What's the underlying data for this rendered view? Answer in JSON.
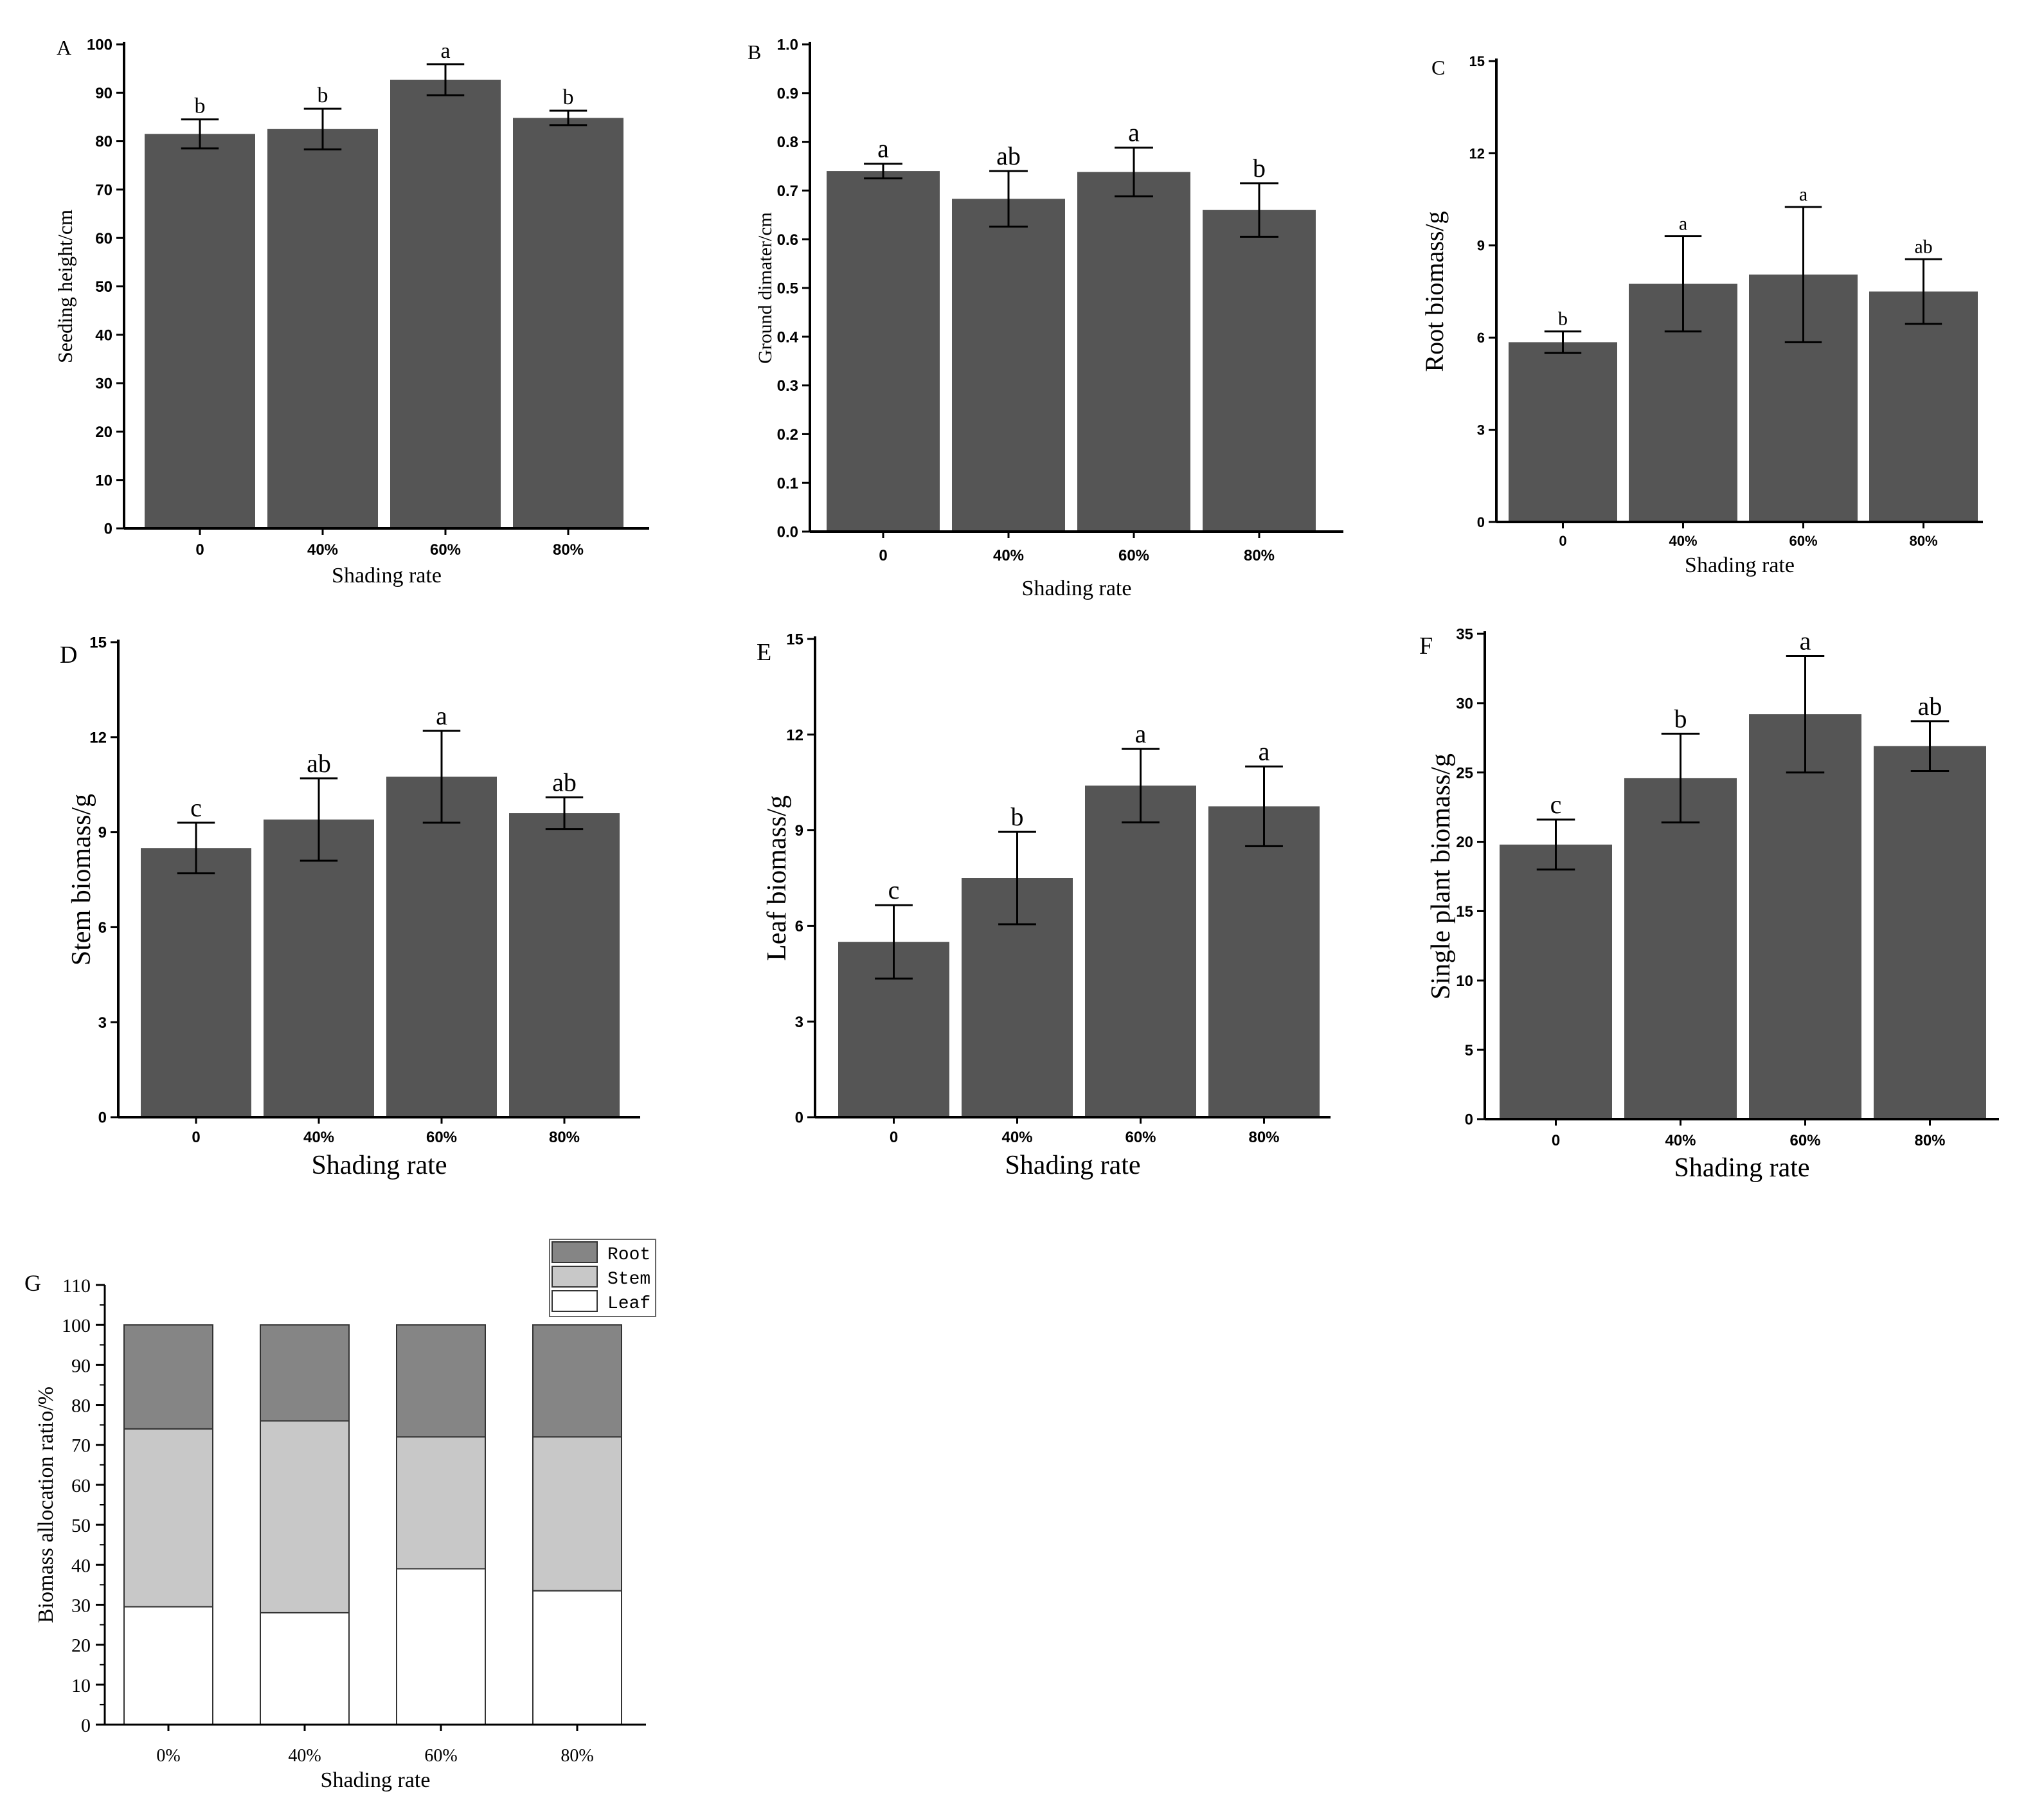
{
  "chart_data": [
    {
      "id": "A",
      "type": "bar",
      "panel_label": "A",
      "categories": [
        "0",
        "40%",
        "60%",
        "80%"
      ],
      "values": [
        81.5,
        82.5,
        92.7,
        84.8
      ],
      "errors": [
        3.0,
        4.2,
        3.2,
        1.5
      ],
      "letters": [
        "b",
        "b",
        "a",
        "b"
      ],
      "xlabel": "Shading rate",
      "ylabel": "Seeding height/cm",
      "ylim": [
        0,
        100
      ],
      "yticks": [
        "0",
        "10",
        "20",
        "30",
        "40",
        "50",
        "60",
        "70",
        "80",
        "90",
        "100"
      ]
    },
    {
      "id": "B",
      "type": "bar",
      "panel_label": "B",
      "categories": [
        "0",
        "40%",
        "60%",
        "80%"
      ],
      "values": [
        0.74,
        0.683,
        0.738,
        0.66
      ],
      "errors": [
        0.015,
        0.057,
        0.05,
        0.055
      ],
      "letters": [
        "a",
        "ab",
        "a",
        "b"
      ],
      "xlabel": "Shading rate",
      "ylabel": "Ground dimater/cm",
      "ylim": [
        0,
        1.0
      ],
      "yticks": [
        "0.0",
        "0.1",
        "0.2",
        "0.3",
        "0.4",
        "0.5",
        "0.6",
        "0.7",
        "0.8",
        "0.9",
        "1.0"
      ]
    },
    {
      "id": "C",
      "type": "bar",
      "panel_label": "C",
      "categories": [
        "0",
        "40%",
        "60%",
        "80%"
      ],
      "values": [
        5.85,
        7.75,
        8.05,
        7.5
      ],
      "errors": [
        0.35,
        1.55,
        2.2,
        1.05
      ],
      "letters": [
        "b",
        "a",
        "a",
        "ab"
      ],
      "xlabel": "Shading rate",
      "ylabel": "Root biomass/g",
      "ylim": [
        0,
        15
      ],
      "yticks": [
        "0",
        "3",
        "6",
        "9",
        "12",
        "15"
      ]
    },
    {
      "id": "D",
      "type": "bar",
      "panel_label": "D",
      "categories": [
        "0",
        "40%",
        "60%",
        "80%"
      ],
      "values": [
        8.5,
        9.4,
        10.75,
        9.6
      ],
      "errors": [
        0.8,
        1.3,
        1.45,
        0.5
      ],
      "letters": [
        "c",
        "ab",
        "a",
        "ab"
      ],
      "xlabel": "Shading rate",
      "ylabel": "Stem biomass/g",
      "ylim": [
        0,
        15
      ],
      "yticks": [
        "0",
        "3",
        "6",
        "9",
        "12",
        "15"
      ]
    },
    {
      "id": "E",
      "type": "bar",
      "panel_label": "E",
      "categories": [
        "0",
        "40%",
        "60%",
        "80%"
      ],
      "values": [
        5.5,
        7.5,
        10.4,
        9.75
      ],
      "errors": [
        1.15,
        1.45,
        1.15,
        1.25
      ],
      "letters": [
        "c",
        "b",
        "a",
        "a"
      ],
      "xlabel": "Shading rate",
      "ylabel": "Leaf biomass/g",
      "ylim": [
        0,
        15
      ],
      "yticks": [
        "0",
        "3",
        "6",
        "9",
        "12",
        "15"
      ]
    },
    {
      "id": "F",
      "type": "bar",
      "panel_label": "F",
      "categories": [
        "0",
        "40%",
        "60%",
        "80%"
      ],
      "values": [
        19.8,
        24.6,
        29.2,
        26.9
      ],
      "errors": [
        1.8,
        3.2,
        4.2,
        1.8
      ],
      "letters": [
        "c",
        "b",
        "a",
        "ab"
      ],
      "xlabel": "Shading rate",
      "ylabel": "Single plant biomass/g",
      "ylim": [
        0,
        35
      ],
      "yticks": [
        "0",
        "5",
        "10",
        "15",
        "20",
        "25",
        "30",
        "35"
      ]
    },
    {
      "id": "G",
      "type": "bar",
      "stacked": true,
      "panel_label": "G",
      "categories": [
        "0%",
        "40%",
        "60%",
        "80%"
      ],
      "series": [
        {
          "name": "Leaf",
          "color": "#ffffff",
          "values": [
            29.5,
            28,
            39,
            33.5
          ]
        },
        {
          "name": "Stem",
          "color": "#c8c8c8",
          "values": [
            44.5,
            48,
            33,
            38.5
          ]
        },
        {
          "name": "Root",
          "color": "#858585",
          "values": [
            26,
            24,
            28,
            28
          ]
        }
      ],
      "legend_order": [
        "Root",
        "Stem",
        "Leaf"
      ],
      "xlabel": "Shading rate",
      "ylabel": "Biomass allocation ratio/%",
      "ylim": [
        0,
        110
      ],
      "yticks": [
        "0",
        "10",
        "20",
        "30",
        "40",
        "50",
        "60",
        "70",
        "80",
        "90",
        "100",
        "110"
      ]
    }
  ]
}
